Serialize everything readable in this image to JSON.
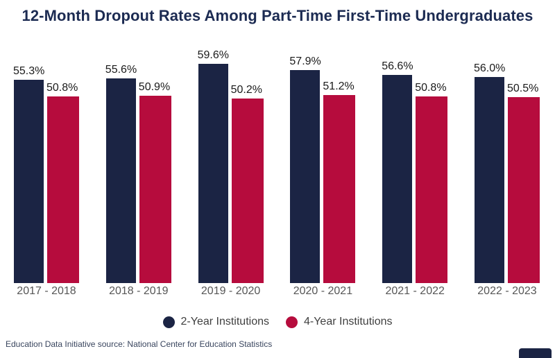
{
  "title": "12-Month Dropout Rates Among Part-Time First-Time Undergraduates",
  "source_note": "Education Data Initiative source: National Center for Education Statistics",
  "colors": {
    "navy": "#1b2444",
    "crimson": "#b60c3d",
    "title_text": "#1c2b52",
    "value_label": "#1a1a1a",
    "axis_label": "#565656"
  },
  "chart_data": {
    "type": "bar",
    "title": "12-Month Dropout Rates Among Part-Time First-Time Undergraduates",
    "categories": [
      "2017 - 2018",
      "2018 - 2019",
      "2019 - 2020",
      "2020 - 2021",
      "2021 - 2022",
      "2022 - 2023"
    ],
    "series": [
      {
        "name": "2-Year Institutions",
        "color": "#1b2444",
        "values": [
          55.3,
          55.6,
          59.6,
          57.9,
          56.6,
          56.0
        ]
      },
      {
        "name": "4-Year Institutions",
        "color": "#b60c3d",
        "values": [
          50.8,
          50.9,
          50.2,
          51.2,
          50.8,
          50.5
        ]
      }
    ],
    "value_labels": [
      [
        "55.3%",
        "55.6%",
        "59.6%",
        "57.9%",
        "56.6%",
        "56.0%"
      ],
      [
        "50.8%",
        "50.9%",
        "50.2%",
        "51.2%",
        "50.8%",
        "50.5%"
      ]
    ],
    "value_suffix": "%",
    "xlabel": "",
    "ylabel": "",
    "ylim": [
      0,
      62
    ],
    "grid": false,
    "axes_shown": false,
    "legend_position": "bottom"
  }
}
